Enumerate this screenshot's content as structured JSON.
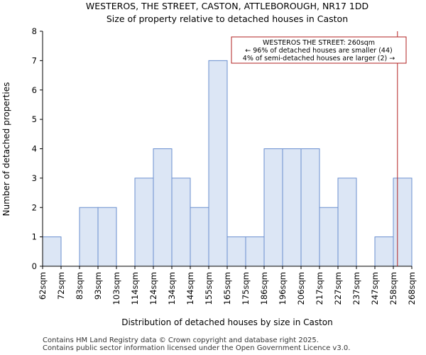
{
  "chart_data": {
    "type": "bar",
    "title_line1": "WESTEROS, THE STREET, CASTON, ATTLEBOROUGH, NR17 1DD",
    "title_line2": "Size of property relative to detached houses in Caston",
    "xlabel": "Distribution of detached houses by size in Caston",
    "ylabel": "Number of detached properties",
    "ylim": [
      0,
      8
    ],
    "yticks": [
      "0",
      "1",
      "2",
      "3",
      "4",
      "5",
      "6",
      "7",
      "8"
    ],
    "bin_edges": [
      62,
      72,
      83,
      93,
      103,
      114,
      124,
      134,
      144,
      155,
      165,
      175,
      186,
      196,
      206,
      217,
      227,
      237,
      247,
      258,
      268
    ],
    "xtick_labels": [
      "62sqm",
      "72sqm",
      "83sqm",
      "93sqm",
      "103sqm",
      "114sqm",
      "124sqm",
      "134sqm",
      "144sqm",
      "155sqm",
      "165sqm",
      "175sqm",
      "186sqm",
      "196sqm",
      "206sqm",
      "217sqm",
      "227sqm",
      "237sqm",
      "247sqm",
      "258sqm",
      "268sqm"
    ],
    "values": [
      1,
      0,
      2,
      2,
      0,
      3,
      4,
      3,
      2,
      7,
      1,
      1,
      4,
      4,
      4,
      2,
      3,
      0,
      1,
      3
    ],
    "property_line_value": 260,
    "annotation": {
      "line1": "WESTEROS THE STREET: 260sqm",
      "line2": "← 96% of detached houses are smaller (44)",
      "line3": "4% of semi-detached houses are larger (2) →"
    },
    "colors": {
      "bar_fill": "#dce6f5",
      "bar_edge": "#6a8fcf",
      "marker_line": "#b22222",
      "axis": "#000000"
    }
  },
  "footer": {
    "line1": "Contains HM Land Registry data © Crown copyright and database right 2025.",
    "line2": "Contains public sector information licensed under the Open Government Licence v3.0."
  }
}
